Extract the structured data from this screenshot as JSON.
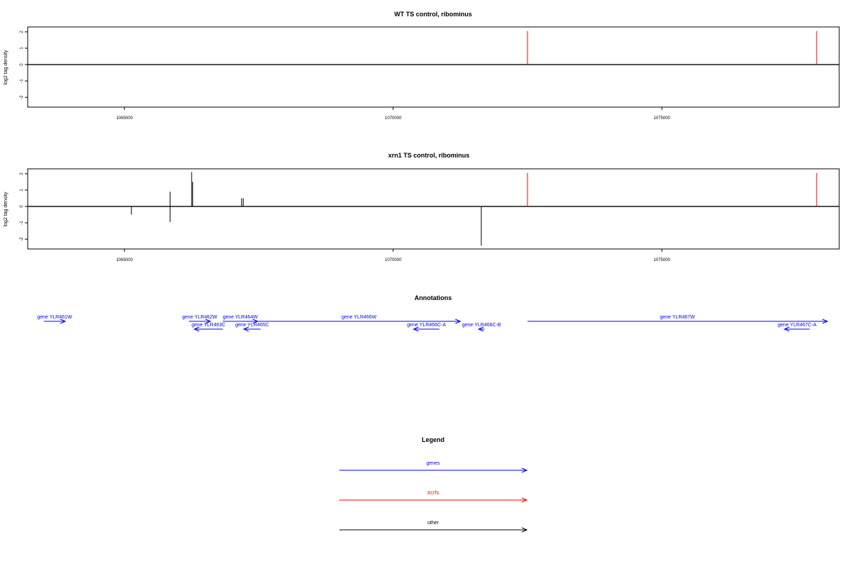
{
  "chart_data": [
    {
      "type": "bar",
      "title": "WT TS control, ribominus",
      "ylabel": "log2 tag density",
      "xlim": [
        1063200,
        1078300
      ],
      "ylim": [
        -2.6,
        2.3
      ],
      "x_ticks": [
        "1065000",
        "1070000",
        "1075000"
      ],
      "y_ticks": [
        "2",
        "1",
        "0",
        "-1",
        "-2"
      ],
      "baseline": {
        "from": 1063200,
        "to": 1078300,
        "y": 0
      },
      "series": [
        {
          "name": "XUTs",
          "color": "#ff0000",
          "points": [
            {
              "x": 1072500,
              "y": 2.05
            },
            {
              "x": 1077880,
              "y": 2.05
            }
          ]
        }
      ]
    },
    {
      "type": "bar",
      "title": "xrn1 TS control, ribominus",
      "ylabel": "log2 tag density",
      "xlim": [
        1063200,
        1078300
      ],
      "ylim": [
        -2.6,
        2.3
      ],
      "x_ticks": [
        "1065000",
        "1070000",
        "1075000"
      ],
      "y_ticks": [
        "2",
        "1",
        "0",
        "-1",
        "-2"
      ],
      "baseline": {
        "from": 1063200,
        "to": 1078300,
        "y": 0
      },
      "series": [
        {
          "name": "other",
          "color": "#000000",
          "points": [
            {
              "x": 1065130,
              "y": -0.5
            },
            {
              "x": 1065850,
              "y": 0.9
            },
            {
              "x": 1065850,
              "y": -0.95
            },
            {
              "x": 1066250,
              "y": 2.1
            },
            {
              "x": 1066270,
              "y": 1.5
            },
            {
              "x": 1067180,
              "y": 0.5
            },
            {
              "x": 1067210,
              "y": 0.5
            },
            {
              "x": 1071640,
              "y": -2.4
            }
          ]
        },
        {
          "name": "XUTs",
          "color": "#ff0000",
          "points": [
            {
              "x": 1072500,
              "y": 2.05
            },
            {
              "x": 1077880,
              "y": 2.05
            }
          ]
        }
      ]
    }
  ],
  "annotations": {
    "title": "Annotations",
    "genes": [
      {
        "label": "gene YLR461W",
        "start": 1063500,
        "end": 1063900,
        "strand": "+",
        "row": 0
      },
      {
        "label": "gene YLR462W",
        "start": 1066200,
        "end": 1066600,
        "strand": "+",
        "row": 0
      },
      {
        "label": "gene YLR463C",
        "start": 1066300,
        "end": 1066830,
        "strand": "-",
        "row": 1
      },
      {
        "label": "gene YLR464W",
        "start": 1066830,
        "end": 1067480,
        "strand": "+",
        "row": 0
      },
      {
        "label": "gene YLR465C",
        "start": 1067220,
        "end": 1067530,
        "strand": "-",
        "row": 1
      },
      {
        "label": "gene YLR466W",
        "start": 1067480,
        "end": 1071250,
        "strand": "+",
        "row": 0
      },
      {
        "label": "gene YLR466C-A",
        "start": 1070380,
        "end": 1070860,
        "strand": "-",
        "row": 1
      },
      {
        "label": "gene YLR466C-B",
        "start": 1071590,
        "end": 1071700,
        "strand": "-",
        "row": 1
      },
      {
        "label": "gene YLR467W",
        "start": 1072500,
        "end": 1078080,
        "strand": "+",
        "row": 0
      },
      {
        "label": "gene YLR467C-A",
        "start": 1077280,
        "end": 1077750,
        "strand": "-",
        "row": 1
      }
    ]
  },
  "legend": {
    "title": "Legend",
    "items": [
      {
        "label": "genes",
        "color": "#0000ff"
      },
      {
        "label": "XUTs",
        "color": "#ff0000"
      },
      {
        "label": "other",
        "color": "#000000"
      }
    ]
  }
}
